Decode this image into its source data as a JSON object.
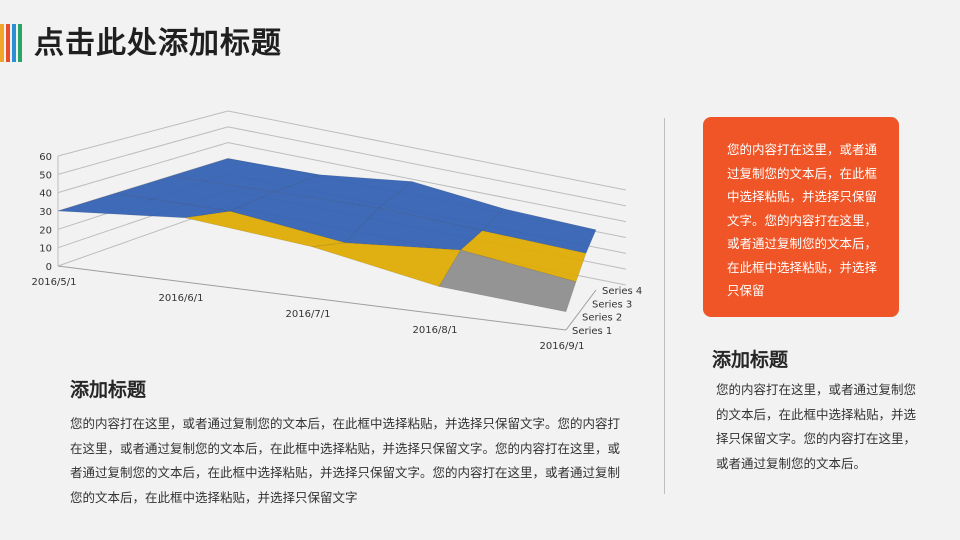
{
  "page": {
    "title": "点击此处添加标题",
    "accent_colors": [
      "#f0a52b",
      "#e94e2b",
      "#2d8fd6",
      "#2aa56a"
    ]
  },
  "chart_data": {
    "type": "surface-3d",
    "title": "",
    "xlabel": "",
    "ylabel": "",
    "categories": [
      "2016/5/1",
      "2016/6/1",
      "2016/7/1",
      "2016/8/1",
      "2016/9/1"
    ],
    "y_ticks": [
      "0",
      "10",
      "20",
      "30",
      "40",
      "50",
      "60"
    ],
    "ylim": [
      0,
      60
    ],
    "series": [
      {
        "name": "Series 1",
        "values": [
          30,
          35,
          28,
          15,
          10
        ]
      },
      {
        "name": "Series 2",
        "values": [
          30,
          30,
          22,
          28,
          20
        ]
      },
      {
        "name": "Series 3",
        "values": [
          30,
          32,
          34,
          32,
          30
        ]
      },
      {
        "name": "Series 4",
        "values": [
          30,
          33,
          42,
          38,
          38
        ]
      }
    ],
    "colors": {
      "band_0_10": "#e3702d",
      "band_10_20": "#8f8f8f",
      "band_20_30": "#e0ac06",
      "band_30_40": "#3563b4",
      "band_40_50": "#5e9b3a"
    },
    "grid": true,
    "legend": "none"
  },
  "orange_box": {
    "text": "您的内容打在这里，或者通过复制您的文本后，在此框中选择粘贴，并选择只保留文字。您的内容打在这里，或者通过复制您的文本后，在此框中选择粘贴，并选择只保留"
  },
  "left_section": {
    "title": "添加标题",
    "body": "您的内容打在这里，或者通过复制您的文本后，在此框中选择粘贴，并选择只保留文字。您的内容打在这里，或者通过复制您的文本后，在此框中选择粘贴，并选择只保留文字。您的内容打在这里，或者通过复制您的文本后，在此框中选择粘贴，并选择只保留文字。您的内容打在这里，或者通过复制您的文本后，在此框中选择粘贴，并选择只保留文字"
  },
  "right_section": {
    "title": "添加标题",
    "body": "您的内容打在这里，或者通过复制您的文本后，在此框中选择粘贴，并选择只保留文字。您的内容打在这里，或者通过复制您的文本后。"
  }
}
